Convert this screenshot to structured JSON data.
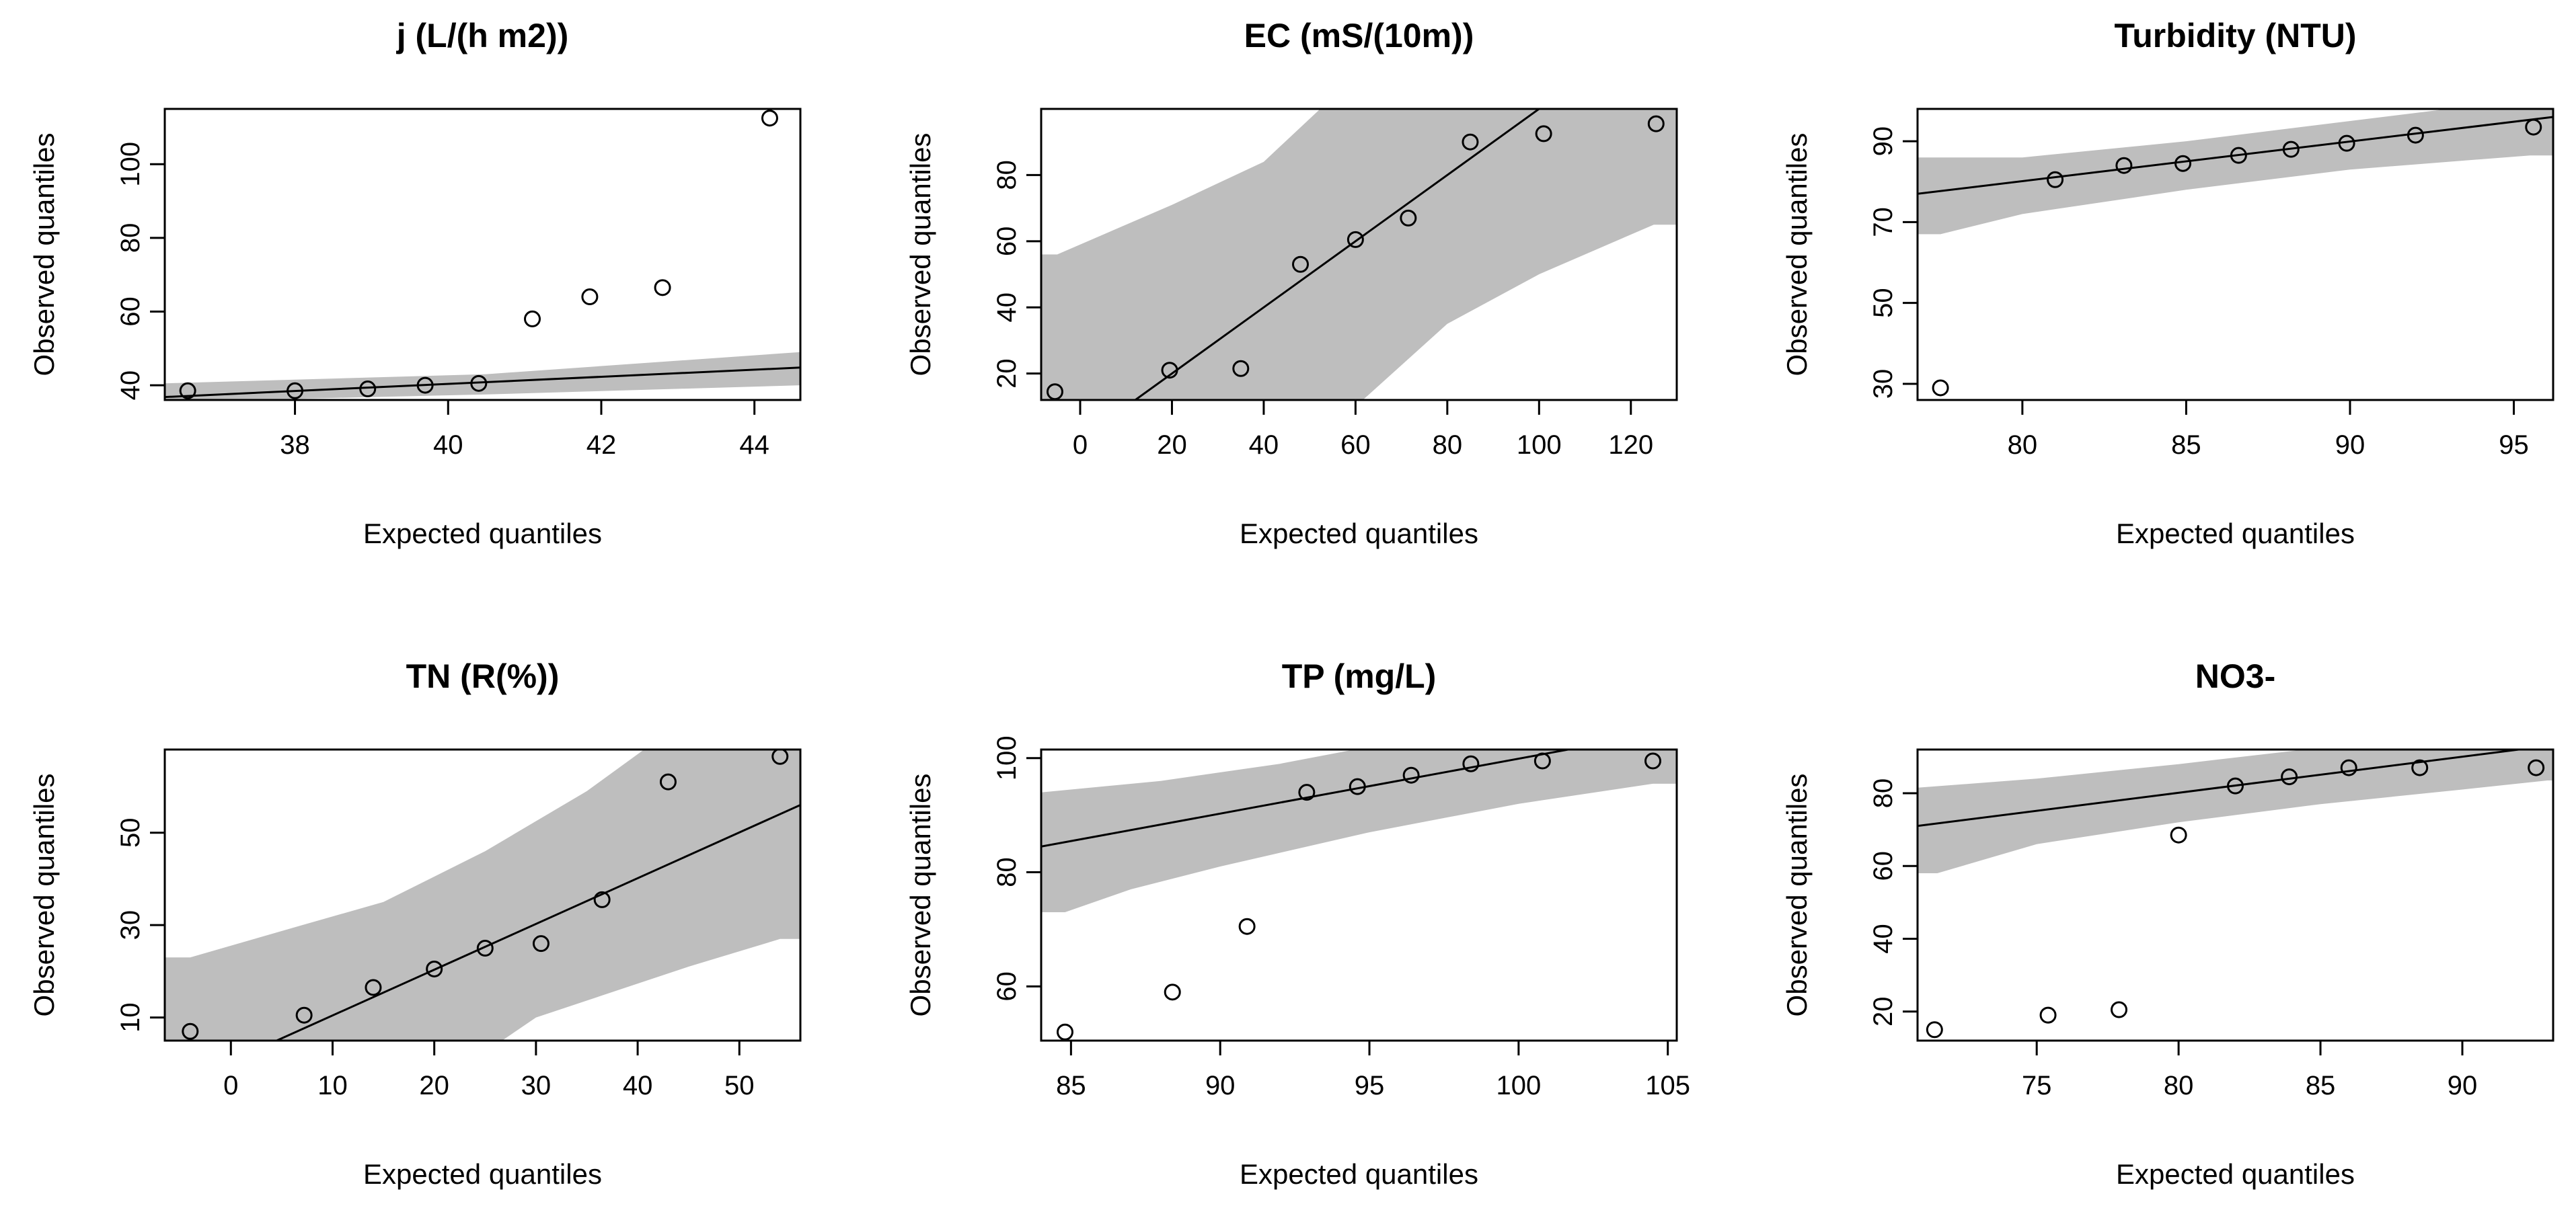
{
  "chart_data": [
    {
      "type": "scatter",
      "title": "j (L/(h m2))",
      "xlabel": "Expected quantiles",
      "ylabel": "Observed quantiles",
      "xlim": [
        36.3,
        44.6
      ],
      "ylim": [
        36.0,
        115.0
      ],
      "xticks": [
        38,
        40,
        42,
        44
      ],
      "yticks": [
        40,
        60,
        80,
        100
      ],
      "points": [
        [
          36.6,
          38.5
        ],
        [
          38.0,
          38.5
        ],
        [
          38.95,
          39.0
        ],
        [
          39.7,
          40.0
        ],
        [
          40.4,
          40.5
        ],
        [
          41.1,
          58.0
        ],
        [
          41.85,
          64.0
        ],
        [
          42.8,
          66.5
        ],
        [
          44.2,
          112.5
        ]
      ],
      "line": [
        [
          36.3,
          36.8
        ],
        [
          44.6,
          44.8
        ]
      ],
      "band_lower": [
        [
          36.3,
          35.5
        ],
        [
          40.5,
          37.5
        ],
        [
          44.6,
          40.0
        ]
      ],
      "band_upper": [
        [
          36.3,
          40.5
        ],
        [
          40.5,
          43.0
        ],
        [
          44.6,
          49.0
        ]
      ]
    },
    {
      "type": "scatter",
      "title": "EC (mS/(10m))",
      "xlabel": "Expected quantiles",
      "ylabel": "Observed quantiles",
      "xlim": [
        -8.5,
        130.0
      ],
      "ylim": [
        12.0,
        100.0
      ],
      "xticks": [
        0,
        20,
        40,
        60,
        80,
        100,
        120
      ],
      "yticks": [
        20,
        40,
        60,
        80
      ],
      "points": [
        [
          -5.5,
          14.5
        ],
        [
          19.5,
          21.0
        ],
        [
          35.0,
          21.5
        ],
        [
          48.0,
          53.0
        ],
        [
          60.0,
          60.5
        ],
        [
          71.5,
          67.0
        ],
        [
          85.0,
          90.0
        ],
        [
          101.0,
          92.5
        ],
        [
          125.5,
          95.5
        ]
      ],
      "line": [
        [
          8.0,
          8.0
        ],
        [
          130.0,
          130.0
        ]
      ],
      "band_lower": [
        [
          -8.5,
          -60.0
        ],
        [
          40.0,
          -10.0
        ],
        [
          60.0,
          10.0
        ],
        [
          80.0,
          35.0
        ],
        [
          100.0,
          50.0
        ],
        [
          125.0,
          65.0
        ],
        [
          130.0,
          65.0
        ]
      ],
      "band_upper": [
        [
          -8.5,
          56.0
        ],
        [
          -5.0,
          56.0
        ],
        [
          20.0,
          71.0
        ],
        [
          40.0,
          84.0
        ],
        [
          60.0,
          110.0
        ],
        [
          80.0,
          135.0
        ],
        [
          130.0,
          190.0
        ]
      ]
    },
    {
      "type": "scatter",
      "title": "Turbidity (NTU)",
      "xlabel": "Expected quantiles",
      "ylabel": "Observed quantiles",
      "xlim": [
        76.8,
        96.2
      ],
      "ylim": [
        26.0,
        98.0
      ],
      "xticks": [
        80,
        85,
        90,
        95
      ],
      "yticks": [
        30,
        50,
        70,
        90
      ],
      "points": [
        [
          77.5,
          29.0
        ],
        [
          81.0,
          80.5
        ],
        [
          83.1,
          84.0
        ],
        [
          84.9,
          84.5
        ],
        [
          86.6,
          86.5
        ],
        [
          88.2,
          88.0
        ],
        [
          89.9,
          89.5
        ],
        [
          92.0,
          91.5
        ],
        [
          95.6,
          93.5
        ]
      ],
      "line": [
        [
          76.8,
          77.0
        ],
        [
          96.2,
          96.0
        ]
      ],
      "band_lower": [
        [
          76.8,
          67.0
        ],
        [
          77.5,
          67.0
        ],
        [
          80.0,
          72.0
        ],
        [
          85.0,
          78.0
        ],
        [
          90.0,
          83.0
        ],
        [
          95.5,
          86.5
        ],
        [
          96.2,
          86.5
        ]
      ],
      "band_upper": [
        [
          76.8,
          86.0
        ],
        [
          80.0,
          86.0
        ],
        [
          85.0,
          90.0
        ],
        [
          90.0,
          95.0
        ],
        [
          95.0,
          100.0
        ],
        [
          96.2,
          100.0
        ]
      ]
    },
    {
      "type": "scatter",
      "title": "TN (R(%))",
      "xlabel": "Expected quantiles",
      "ylabel": "Observed quantiles",
      "xlim": [
        -6.5,
        56.0
      ],
      "ylim": [
        5.0,
        68.0
      ],
      "xticks": [
        0,
        10,
        20,
        30,
        40,
        50
      ],
      "yticks": [
        10,
        30,
        50
      ],
      "points": [
        [
          -4.0,
          7.0
        ],
        [
          7.2,
          10.5
        ],
        [
          14.0,
          16.5
        ],
        [
          20.0,
          20.5
        ],
        [
          25.0,
          25.0
        ],
        [
          30.5,
          26.0
        ],
        [
          36.5,
          35.5
        ],
        [
          43.0,
          61.0
        ],
        [
          54.0,
          66.5
        ]
      ],
      "line": [
        [
          4.5,
          5.0
        ],
        [
          56.0,
          56.0
        ]
      ],
      "band_lower": [
        [
          -6.5,
          -25.0
        ],
        [
          20.0,
          -5.0
        ],
        [
          30.0,
          10.0
        ],
        [
          45.0,
          21.0
        ],
        [
          54.0,
          27.0
        ],
        [
          56.0,
          27.0
        ]
      ],
      "band_upper": [
        [
          -6.5,
          23.0
        ],
        [
          -4.0,
          23.0
        ],
        [
          7.0,
          30.0
        ],
        [
          15.0,
          35.0
        ],
        [
          25.0,
          46.0
        ],
        [
          35.0,
          59.0
        ],
        [
          45.0,
          75.0
        ],
        [
          56.0,
          90.0
        ]
      ]
    },
    {
      "type": "scatter",
      "title": "TP (mg/L)",
      "xlabel": "Expected quantiles",
      "ylabel": "Observed quantiles",
      "xlim": [
        84.0,
        105.3
      ],
      "ylim": [
        50.5,
        101.5
      ],
      "xticks": [
        85,
        90,
        95,
        100,
        105
      ],
      "yticks": [
        60,
        80,
        100
      ],
      "points": [
        [
          84.8,
          52.0
        ],
        [
          88.4,
          59.0
        ],
        [
          90.9,
          70.5
        ],
        [
          92.9,
          94.0
        ],
        [
          94.6,
          95.0
        ],
        [
          96.4,
          97.0
        ],
        [
          98.4,
          99.0
        ],
        [
          100.8,
          99.5
        ],
        [
          104.5,
          99.5
        ]
      ],
      "line": [
        [
          84.0,
          84.5
        ],
        [
          105.3,
          105.0
        ]
      ],
      "band_lower": [
        [
          84.0,
          73.0
        ],
        [
          84.8,
          73.0
        ],
        [
          87.0,
          77.0
        ],
        [
          90.0,
          81.0
        ],
        [
          95.0,
          87.0
        ],
        [
          100.0,
          92.0
        ],
        [
          104.5,
          95.5
        ],
        [
          105.3,
          95.5
        ]
      ],
      "band_upper": [
        [
          84.0,
          94.0
        ],
        [
          88.0,
          96.0
        ],
        [
          92.0,
          99.0
        ],
        [
          95.0,
          102.0
        ],
        [
          100.0,
          106.0
        ],
        [
          105.3,
          108.0
        ]
      ]
    },
    {
      "type": "scatter",
      "title": "NO3-",
      "xlabel": "Expected quantiles",
      "ylabel": "Observed quantiles",
      "xlim": [
        70.8,
        93.2
      ],
      "ylim": [
        12.0,
        92.0
      ],
      "xticks": [
        75,
        80,
        85,
        90
      ],
      "yticks": [
        20,
        40,
        60,
        80
      ],
      "points": [
        [
          71.4,
          15.0
        ],
        [
          75.4,
          19.0
        ],
        [
          77.9,
          20.5
        ],
        [
          80.0,
          68.5
        ],
        [
          82.0,
          82.0
        ],
        [
          83.9,
          84.5
        ],
        [
          86.0,
          87.0
        ],
        [
          88.5,
          87.0
        ],
        [
          92.6,
          87.0
        ]
      ],
      "line": [
        [
          70.8,
          71.0
        ],
        [
          93.2,
          93.2
        ]
      ],
      "band_lower": [
        [
          70.8,
          58.0
        ],
        [
          71.5,
          58.0
        ],
        [
          75.0,
          66.0
        ],
        [
          80.0,
          72.0
        ],
        [
          85.0,
          77.0
        ],
        [
          90.0,
          81.0
        ],
        [
          93.0,
          83.5
        ],
        [
          93.2,
          83.5
        ]
      ],
      "band_upper": [
        [
          70.8,
          81.5
        ],
        [
          75.0,
          84.0
        ],
        [
          80.0,
          88.0
        ],
        [
          85.0,
          92.5
        ],
        [
          90.0,
          96.0
        ],
        [
          93.2,
          99.0
        ]
      ]
    }
  ]
}
